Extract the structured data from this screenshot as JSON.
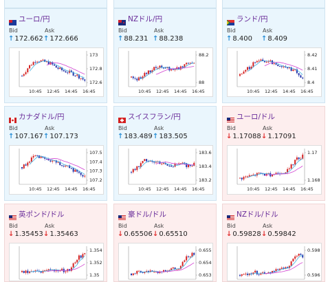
{
  "cards": [
    {
      "name": "ユーロ/円",
      "flag": "eu",
      "bg": "blue",
      "bid": "172.662",
      "ask": "172.666",
      "dir": "up",
      "ticks": [
        "173",
        "172.8",
        "172.6"
      ],
      "xlabels": [
        "10:45",
        "12:45",
        "14:45",
        "16:45"
      ]
    },
    {
      "name": "NZドル/円",
      "flag": "nz",
      "bg": "blue",
      "bid": "88.231",
      "ask": "88.238",
      "dir": "up",
      "ticks": [
        "88.2",
        "88"
      ],
      "xlabels": [
        "10:45",
        "12:45",
        "14:45",
        "16:45"
      ]
    },
    {
      "name": "ランド/円",
      "flag": "za",
      "bg": "blue",
      "bid": "8.400",
      "ask": "8.409",
      "dir": "up",
      "ticks": [
        "8.42",
        "8.41",
        "8.4"
      ],
      "xlabels": [
        "10:45",
        "12:45",
        "14:45",
        "16:45"
      ]
    },
    {
      "name": "カナダドル/円",
      "flag": "ca",
      "bg": "blue",
      "bid": "107.167",
      "ask": "107.173",
      "dir": "up",
      "ticks": [
        "107.5",
        "107.4",
        "107.3",
        "107.2"
      ],
      "xlabels": [
        "10:45",
        "12:45",
        "14:45",
        "16:45"
      ]
    },
    {
      "name": "スイスフラン/円",
      "flag": "ch",
      "bg": "blue",
      "bid": "183.489",
      "ask": "183.505",
      "dir": "up",
      "ticks": [
        "183.6",
        "183.4",
        "183.2"
      ],
      "xlabels": [
        "10:45",
        "12:45",
        "14:45",
        "16:45"
      ]
    },
    {
      "name": "ユーロ/ドル",
      "flag": "us",
      "bg": "pink",
      "bid": "1.17088",
      "ask": "1.17091",
      "dir": "down",
      "ticks": [
        "1.17",
        "1.168"
      ],
      "xlabels": [
        "10:45",
        "12:45",
        "14:45",
        "16:45"
      ]
    },
    {
      "name": "英ポンド/ドル",
      "flag": "us",
      "bg": "pink",
      "bid": "1.35453",
      "ask": "1.35463",
      "dir": "down",
      "ticks": [
        "1.354",
        "1.352",
        "1.35"
      ],
      "xlabels": []
    },
    {
      "name": "豪ドル/ドル",
      "flag": "us",
      "bg": "pink",
      "bid": "0.65506",
      "ask": "0.65510",
      "dir": "down",
      "ticks": [
        "0.655",
        "0.654",
        "0.653"
      ],
      "xlabels": []
    },
    {
      "name": "NZドル/ドル",
      "flag": "us",
      "bg": "pink",
      "bid": "0.59828",
      "ask": "0.59842",
      "dir": "down",
      "ticks": [
        "0.598",
        "0.596"
      ],
      "xlabels": []
    }
  ],
  "labels": {
    "bid": "Bid",
    "ask": "Ask"
  },
  "colors": {
    "up_candle": "#d42020",
    "down_candle": "#2233aa",
    "ma_short": "#40b0e0",
    "ma_long": "#d040d0",
    "title": "#6a2d9a"
  }
}
